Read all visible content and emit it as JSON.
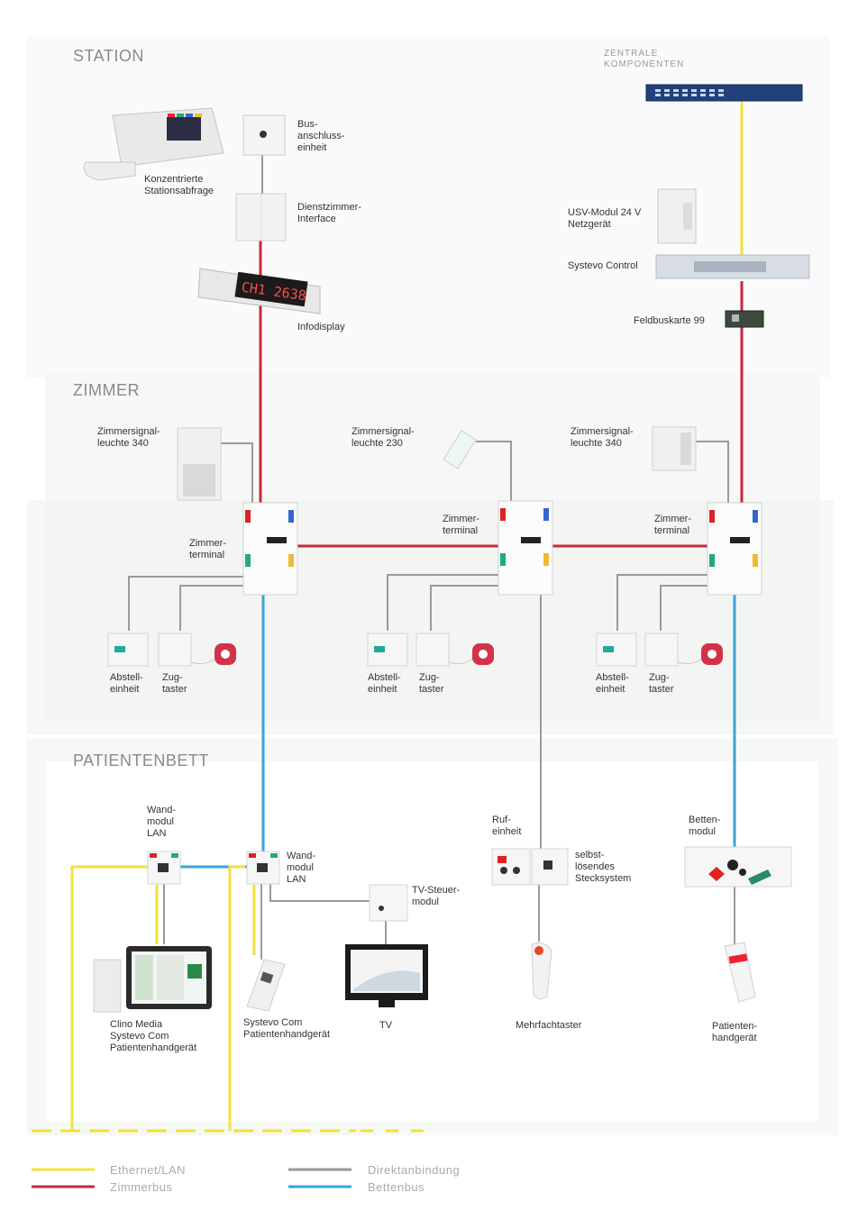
{
  "sections": {
    "station": "STATION",
    "zentrale": "ZENTRALE\nKOMPONENTEN",
    "zimmer": "ZIMMER",
    "patientenbett": "PATIENTENBETT"
  },
  "labels": {
    "stationsabfrage": "Konzentrierte\nStationsabfrage",
    "busanschluss": "Bus-\nanschluss-\neinheit",
    "dienstzimmer": "Dienstzimmer-\nInterface",
    "infodisplay": "Infodisplay",
    "infodisplay_text": "CH1 2638",
    "usv": "USV-Modul 24 V\nNetzgerät",
    "systevo_control": "Systevo Control",
    "feldbuskarte": "Feldbuskarte 99",
    "zsl_340_left": "Zimmersignal-\nleuchte 340",
    "zsl_230": "Zimmersignal-\nleuchte 230",
    "zsl_340_right": "Zimmersignal-\nleuchte 340",
    "zt_left": "Zimmer-\nterminal",
    "zt_mid": "Zimmer-\nterminal",
    "zt_right": "Zimmer-\nterminal",
    "abstell_1": "Abstell-\neinheit",
    "zug_1": "Zug-\ntaster",
    "abstell_2": "Abstell-\neinheit",
    "zug_2": "Zug-\ntaster",
    "abstell_3": "Abstell-\neinheit",
    "zug_3": "Zug-\ntaster",
    "wand_lan_1": "Wand-\nmodul\nLAN",
    "wand_lan_2": "Wand-\nmodul\nLAN",
    "tv_steuer": "TV-Steuer-\nmodul",
    "rufeinheit": "Ruf-\neinheit",
    "stecksystem": "selbst-\nlösendes\nStecksystem",
    "bettenmodul": "Betten-\nmodul",
    "clino": "Clino Media\nSystevo Com\nPatientenhandgerät",
    "systevo_com": "Systevo Com\nPatientenhandgerät",
    "tv": "TV",
    "mehrfachtaster": "Mehrfachtaster",
    "patientenhandgeraet": "Patienten-\nhandgerät"
  },
  "legend": {
    "ethernet": "Ethernet/LAN",
    "zimmerbus": "Zimmerbus",
    "direkt": "Direktanbindung",
    "bettenbus": "Bettenbus"
  },
  "colors": {
    "ethernet": "#f2e23a",
    "zimmerbus": "#c8283a",
    "direkt": "#9a9a9a",
    "bettenbus": "#3aa3d6",
    "section_bg": "#eef3ee"
  }
}
